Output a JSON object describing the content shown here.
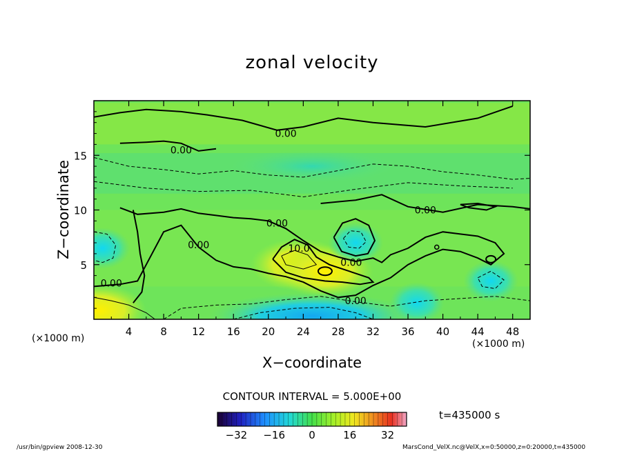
{
  "title": "zonal velocity",
  "ylabel": "Z−coordinate",
  "xlabel": "X−coordinate",
  "x_unit": "(×1000 m)",
  "y_unit": "(×1000 m)",
  "contour_interval": "CONTOUR INTERVAL = 5.000E+00",
  "time_label": "t=435000 s",
  "footer_left": "/usr/bin/gpview  2008-12-30",
  "footer_right": "MarsCond_VelX.nc@VelX,x=0:50000,z=0:20000,t=435000",
  "chart_data": {
    "type": "heatmap",
    "title": "zonal velocity",
    "xlabel": "X−coordinate (×1000 m)",
    "ylabel": "Z−coordinate (×1000 m)",
    "xlim": [
      0,
      50
    ],
    "ylim": [
      0,
      20
    ],
    "x_ticks": [
      4,
      8,
      12,
      16,
      20,
      24,
      28,
      32,
      36,
      40,
      44,
      48
    ],
    "x_tick_labels": [
      "4",
      "8",
      "12",
      "16",
      "20",
      "24",
      "28",
      "32",
      "36",
      "40",
      "44",
      "48"
    ],
    "y_ticks": [
      5,
      10,
      15
    ],
    "y_tick_labels": [
      "5",
      "10",
      "15"
    ],
    "contour_interval": 5,
    "contour_labels": [
      {
        "text": "0.00",
        "x": 22.0,
        "y": 17.0
      },
      {
        "text": "0.00",
        "x": 10.0,
        "y": 15.5
      },
      {
        "text": "0.00",
        "x": 38.0,
        "y": 10.0
      },
      {
        "text": "0.00",
        "x": 21.0,
        "y": 8.8
      },
      {
        "text": "0.00",
        "x": 12.0,
        "y": 6.8
      },
      {
        "text": "0.00",
        "x": 29.5,
        "y": 5.2
      },
      {
        "text": "0.00",
        "x": 2.0,
        "y": 3.3
      },
      {
        "text": "0.00",
        "x": 30.0,
        "y": 1.7
      },
      {
        "text": "10.0",
        "x": 23.5,
        "y": 6.5
      }
    ],
    "features": [
      {
        "kind": "max",
        "x": 23.5,
        "y": 5.0,
        "value": 15
      },
      {
        "kind": "max",
        "x": 26.5,
        "y": 4.4,
        "value": 18
      },
      {
        "kind": "min",
        "x": 30.0,
        "y": 7.0,
        "value": -10
      },
      {
        "kind": "min",
        "x": 1.0,
        "y": 6.5,
        "value": -10
      },
      {
        "kind": "min",
        "x": 25.0,
        "y": 0.3,
        "value": -20
      },
      {
        "kind": "min",
        "x": 37.0,
        "y": 1.5,
        "value": -10
      },
      {
        "kind": "min",
        "x": 45.5,
        "y": 3.5,
        "value": -10
      },
      {
        "kind": "max",
        "x": 0.5,
        "y": 0.8,
        "value": 15
      },
      {
        "kind": "min",
        "x": 25.0,
        "y": 14.0,
        "value": -5
      }
    ],
    "colorbar": {
      "range": [
        -40,
        40
      ],
      "ticks": [
        -32,
        -16,
        0,
        16,
        32
      ],
      "tick_labels": [
        "−32",
        "−16",
        "0",
        "16",
        "32"
      ]
    }
  }
}
